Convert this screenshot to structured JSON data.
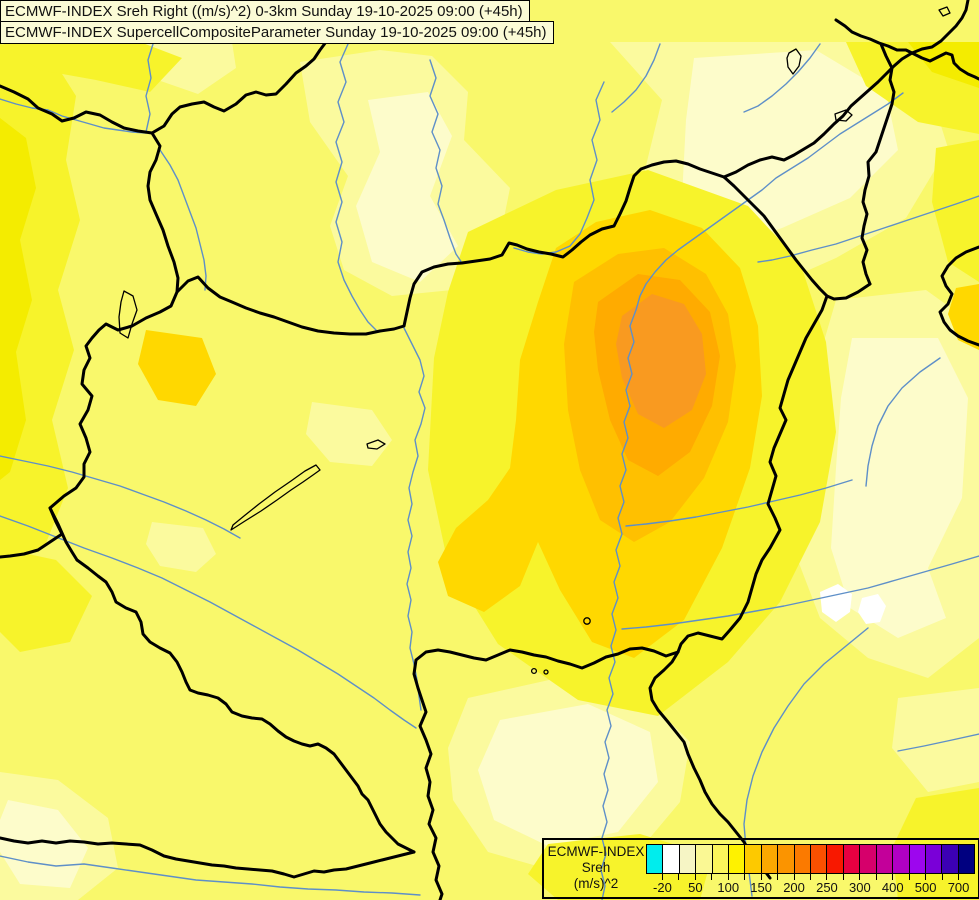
{
  "header": {
    "line1": "ECMWF-INDEX Sreh Right ((m/s)^2) 0-3km Sunday 19-10-2025 09:00 (+45h)",
    "line2": "ECMWF-INDEX SupercellCompositeParameter Sunday 19-10-2025 09:00 (+45h)"
  },
  "legend": {
    "product": "ECMWF-INDEX",
    "parameter": "Sreh",
    "units": "(m/s)^2",
    "tick_labels": [
      "-20",
      "50",
      "100",
      "150",
      "200",
      "250",
      "300",
      "400",
      "500",
      "700"
    ],
    "colors": [
      "#00EDED",
      "#FFFFFF",
      "#F6F5C5",
      "#FAF894",
      "#FBF55C",
      "#FEF200",
      "#FDC900",
      "#FCA800",
      "#FB9400",
      "#FB7A00",
      "#FA5000",
      "#F81800",
      "#E70041",
      "#D6006B",
      "#C3009A",
      "#B000C4",
      "#9D06EE",
      "#7A00D8",
      "#3C00B4",
      "#000080"
    ]
  },
  "map": {
    "palette": {
      "base": "#F9F86B",
      "pale": "#FBFA9E",
      "cream": "#FDFCCB",
      "white": "#FFFFFF",
      "bright": "#F7F32B",
      "vivid": "#F4EC00",
      "golden": "#FFD800",
      "gold": "#FFC000",
      "amber": "#FFAB00",
      "orange": "#F99A20",
      "river": "#5E8FC8",
      "border": "#000000"
    }
  }
}
